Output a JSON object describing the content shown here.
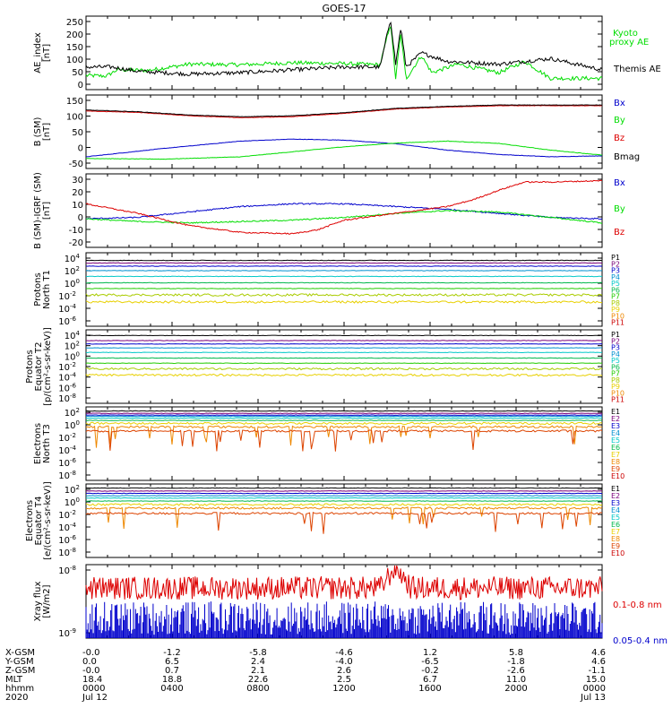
{
  "title": "GOES-17",
  "colors": {
    "black": "#000000",
    "green": "#00dd00",
    "blue": "#0000cc",
    "red": "#dd0000",
    "p": [
      "#000000",
      "#7a007a",
      "#0000cc",
      "#0090d0",
      "#00c8c8",
      "#00b84c",
      "#22cc00",
      "#aacc00",
      "#e8d000",
      "#ee8800",
      "#cc0000"
    ],
    "e": [
      "#000000",
      "#7a007a",
      "#0000cc",
      "#0090d0",
      "#00c8c8",
      "#00b84c",
      "#e8d000",
      "#ee8800",
      "#dd4400",
      "#cc0000"
    ]
  },
  "chart_data": [
    {
      "type": "line",
      "panel": "ae",
      "ylabel": [
        "AE_index",
        "[nT]"
      ],
      "yticks": [
        "250",
        "200",
        "150",
        "100",
        "50",
        "0"
      ],
      "ylim": [
        0,
        260
      ],
      "legend": [
        "Kyoto",
        "proxy AE",
        "Themis AE"
      ],
      "series": [
        {
          "name": "Kyoto proxy AE",
          "color": "green",
          "baseline": 65,
          "points": [
            [
              0,
              50
            ],
            [
              0.04,
              48
            ],
            [
              0.06,
              70
            ],
            [
              0.12,
              68
            ],
            [
              0.2,
              90
            ],
            [
              0.3,
              88
            ],
            [
              0.4,
              95
            ],
            [
              0.5,
              92
            ],
            [
              0.57,
              88
            ],
            [
              0.59,
              235
            ],
            [
              0.6,
              40
            ],
            [
              0.61,
              200
            ],
            [
              0.62,
              38
            ],
            [
              0.65,
              120
            ],
            [
              0.67,
              60
            ],
            [
              0.72,
              90
            ],
            [
              0.8,
              60
            ],
            [
              0.85,
              100
            ],
            [
              0.9,
              40
            ],
            [
              1.0,
              40
            ]
          ]
        },
        {
          "name": "Themis AE",
          "color": "black",
          "baseline": 65,
          "points": [
            [
              0,
              80
            ],
            [
              0.05,
              80
            ],
            [
              0.1,
              65
            ],
            [
              0.2,
              55
            ],
            [
              0.3,
              60
            ],
            [
              0.4,
              70
            ],
            [
              0.5,
              80
            ],
            [
              0.57,
              80
            ],
            [
              0.59,
              250
            ],
            [
              0.6,
              90
            ],
            [
              0.61,
              220
            ],
            [
              0.62,
              80
            ],
            [
              0.65,
              130
            ],
            [
              0.7,
              100
            ],
            [
              0.8,
              90
            ],
            [
              0.9,
              110
            ],
            [
              1.0,
              70
            ]
          ]
        }
      ]
    },
    {
      "type": "line",
      "panel": "bsm",
      "ylabel": [
        "B (SM)",
        "[nT]"
      ],
      "yticks": [
        "150",
        "100",
        "50",
        "0",
        "-50"
      ],
      "ylim": [
        -60,
        160
      ],
      "legend": [
        "Bx",
        "By",
        "Bz",
        "Bmag"
      ],
      "series": [
        {
          "name": "Bx",
          "color": "blue",
          "points": [
            [
              0,
              -25
            ],
            [
              0.15,
              0
            ],
            [
              0.3,
              22
            ],
            [
              0.4,
              28
            ],
            [
              0.5,
              25
            ],
            [
              0.6,
              14
            ],
            [
              0.7,
              -5
            ],
            [
              0.8,
              -18
            ],
            [
              0.9,
              -25
            ],
            [
              1.0,
              -22
            ]
          ]
        },
        {
          "name": "By",
          "color": "green",
          "points": [
            [
              0,
              -30
            ],
            [
              0.15,
              -32
            ],
            [
              0.3,
              -25
            ],
            [
              0.4,
              -10
            ],
            [
              0.5,
              5
            ],
            [
              0.6,
              16
            ],
            [
              0.7,
              22
            ],
            [
              0.8,
              15
            ],
            [
              0.9,
              -5
            ],
            [
              1.0,
              -20
            ]
          ]
        },
        {
          "name": "Bz",
          "color": "red",
          "points": [
            [
              0,
              112
            ],
            [
              0.1,
              108
            ],
            [
              0.2,
              98
            ],
            [
              0.3,
              92
            ],
            [
              0.4,
              95
            ],
            [
              0.5,
              105
            ],
            [
              0.6,
              118
            ],
            [
              0.7,
              124
            ],
            [
              0.8,
              128
            ],
            [
              0.9,
              128
            ],
            [
              1.0,
              128
            ]
          ]
        },
        {
          "name": "Bmag",
          "color": "black",
          "points": [
            [
              0,
              115
            ],
            [
              0.1,
              110
            ],
            [
              0.2,
              100
            ],
            [
              0.3,
              95
            ],
            [
              0.4,
              98
            ],
            [
              0.5,
              107
            ],
            [
              0.6,
              120
            ],
            [
              0.7,
              126
            ],
            [
              0.8,
              130
            ],
            [
              0.9,
              130
            ],
            [
              1.0,
              130
            ]
          ]
        }
      ]
    },
    {
      "type": "line",
      "panel": "bdiff",
      "ylabel": [
        "B (SM)-IGRF (SM)",
        "[nT]"
      ],
      "yticks": [
        "30",
        "20",
        "10",
        "0",
        "-10",
        "-20"
      ],
      "ylim": [
        -22,
        32
      ],
      "legend": [
        "Bx",
        "By",
        "Bz"
      ],
      "series": [
        {
          "name": "Bx",
          "color": "blue",
          "points": [
            [
              0,
              -1
            ],
            [
              0.1,
              0
            ],
            [
              0.2,
              4
            ],
            [
              0.3,
              8
            ],
            [
              0.4,
              10
            ],
            [
              0.5,
              10
            ],
            [
              0.55,
              9
            ],
            [
              0.6,
              8
            ],
            [
              0.7,
              6
            ],
            [
              0.8,
              3
            ],
            [
              0.9,
              0
            ],
            [
              1.0,
              -1
            ]
          ]
        },
        {
          "name": "By",
          "color": "green",
          "points": [
            [
              0,
              -1
            ],
            [
              0.1,
              -3
            ],
            [
              0.2,
              -4
            ],
            [
              0.3,
              -3
            ],
            [
              0.4,
              -2
            ],
            [
              0.5,
              0
            ],
            [
              0.6,
              3
            ],
            [
              0.7,
              5
            ],
            [
              0.8,
              4
            ],
            [
              0.9,
              0
            ],
            [
              1.0,
              -4
            ]
          ]
        },
        {
          "name": "Bz",
          "color": "red",
          "points": [
            [
              0,
              10
            ],
            [
              0.1,
              3
            ],
            [
              0.2,
              -6
            ],
            [
              0.3,
              -11
            ],
            [
              0.4,
              -12
            ],
            [
              0.45,
              -9
            ],
            [
              0.5,
              -2
            ],
            [
              0.6,
              3
            ],
            [
              0.7,
              8
            ],
            [
              0.75,
              13
            ],
            [
              0.8,
              20
            ],
            [
              0.85,
              26
            ],
            [
              0.9,
              26
            ],
            [
              1.0,
              27
            ]
          ]
        }
      ]
    },
    {
      "type": "line",
      "panel": "pn",
      "ylabel": [
        "Protons",
        "North T1"
      ],
      "yticks": [
        "10^4",
        "10^2",
        "10^0",
        "10^-2",
        "10^-4",
        "10^-6"
      ],
      "ylim_log": [
        -7,
        4.5
      ],
      "legend": [
        "P1",
        "P2",
        "P3",
        "P4",
        "P5",
        "P6",
        "P7",
        "P8",
        "P9",
        "P10",
        "P11"
      ],
      "levels_log": [
        3.3,
        2.9,
        2.4,
        1.7,
        0.8,
        -0.2,
        -1.1,
        -2.1,
        -3.2,
        null,
        null
      ]
    },
    {
      "type": "line",
      "panel": "pe",
      "ylabel": [
        "Protons",
        "Equator T2",
        "[p/(cm²-s-sr-keV)]"
      ],
      "yticks": [
        "10^4",
        "10^2",
        "10^0",
        "10^-2",
        "10^-4",
        "10^-6",
        "10^-8"
      ],
      "ylim_log": [
        -8.5,
        4.5
      ],
      "legend": [
        "P1",
        "P2",
        "P3",
        "P4",
        "P5",
        "P6",
        "P7",
        "P8",
        "P9",
        "P10",
        "P11"
      ],
      "levels_log": [
        3.5,
        2.6,
        2.0,
        1.3,
        0.5,
        -0.5,
        -1.4,
        -2.4,
        -3.5,
        null,
        null
      ]
    },
    {
      "type": "line",
      "panel": "en",
      "ylabel": [
        "Electrons",
        "North T3"
      ],
      "yticks": [
        "10^2",
        "10^0",
        "10^-2",
        "10^-4",
        "10^-6",
        "10^-8"
      ],
      "ylim_log": [
        -9,
        3.5
      ],
      "legend": [
        "E1",
        "E2",
        "E3",
        "E4",
        "E5",
        "E6",
        "E7",
        "E8",
        "E9",
        "E10"
      ],
      "levels_log": [
        2.8,
        2.4,
        2.1,
        1.9,
        1.6,
        1.2,
        0.7,
        0.1,
        -0.6,
        null
      ]
    },
    {
      "type": "line",
      "panel": "ee",
      "ylabel": [
        "Electrons",
        "Equator T4",
        "[e/(cm²-s-sr-keV)]"
      ],
      "yticks": [
        "10^2",
        "10^0",
        "10^-2",
        "10^-4",
        "10^-6",
        "10^-8"
      ],
      "ylim_log": [
        -9,
        3.5
      ],
      "legend": [
        "E1",
        "E2",
        "E3",
        "E4",
        "E5",
        "E6",
        "E7",
        "E8",
        "E9",
        "E10"
      ],
      "levels_log": [
        2.8,
        2.3,
        1.9,
        1.5,
        1.1,
        0.6,
        0.0,
        -0.6,
        -1.5,
        null
      ]
    },
    {
      "type": "line",
      "panel": "xray",
      "ylabel": [
        "Xray flux",
        "[W/m2]"
      ],
      "yticks": [
        "10^-8",
        "10^-9"
      ],
      "ylim_log": [
        -9.05,
        -7.95
      ],
      "legend": [
        "0.1-0.8 nm",
        "0.05-0.4 nm"
      ],
      "series": [
        {
          "name": "0.1-0.8 nm",
          "color": "red",
          "level_log": -8.3,
          "peak": {
            "x": 0.6,
            "log": -7.98
          }
        },
        {
          "name": "0.05-0.4 nm",
          "color": "blue",
          "level_log": -8.85
        }
      ]
    }
  ],
  "orbit_table": {
    "row_labels": [
      "X-GSM",
      "Y-GSM",
      "Z-GSM",
      "MLT",
      "hhmm",
      "2020"
    ],
    "columns": [
      [
        "-0.0",
        "0.0",
        "-0.0",
        "18.4",
        "0000",
        "Jul 12"
      ],
      [
        "-1.2",
        "6.5",
        "0.7",
        "18.8",
        "0400",
        ""
      ],
      [
        "-5.8",
        "2.4",
        "2.1",
        "22.6",
        "0800",
        ""
      ],
      [
        "-4.6",
        "-4.0",
        "2.6",
        "2.5",
        "1200",
        ""
      ],
      [
        "1.2",
        "-6.5",
        "-0.2",
        "6.7",
        "1600",
        ""
      ],
      [
        "5.8",
        "-1.8",
        "-2.6",
        "11.0",
        "2000",
        ""
      ],
      [
        "4.6",
        "4.6",
        "-1.1",
        "15.0",
        "0000",
        "Jul 13"
      ]
    ]
  }
}
